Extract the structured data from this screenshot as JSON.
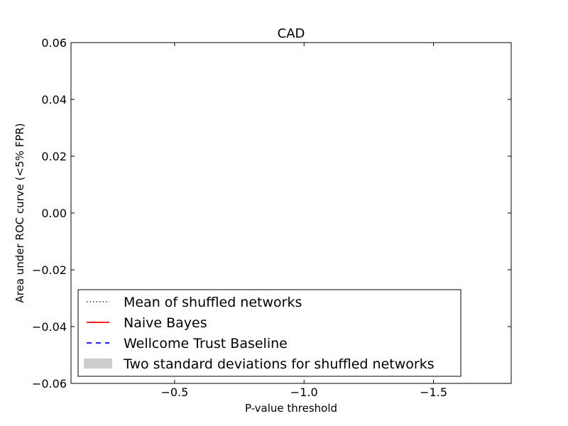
{
  "chart_data": {
    "type": "line",
    "title": "CAD",
    "xlabel": "P-value threshold",
    "ylabel": "Area under ROC curve (<5% FPR)",
    "xlim": [
      -0.1,
      -1.8
    ],
    "ylim": [
      -0.06,
      0.06
    ],
    "x_ticks": [
      {
        "value": -0.5,
        "label": "−0.5"
      },
      {
        "value": -1.0,
        "label": "−1.0"
      },
      {
        "value": -1.5,
        "label": "−1.5"
      }
    ],
    "y_ticks": [
      {
        "value": 0.06,
        "label": "0.06"
      },
      {
        "value": 0.04,
        "label": "0.04"
      },
      {
        "value": 0.02,
        "label": "0.02"
      },
      {
        "value": 0.0,
        "label": "0.00"
      },
      {
        "value": -0.02,
        "label": "−0.02"
      },
      {
        "value": -0.04,
        "label": "−0.04"
      },
      {
        "value": -0.06,
        "label": "−0.06"
      }
    ],
    "grid": false,
    "legend_position": "lower-left",
    "series": [
      {
        "name": "Mean of shuffled networks",
        "style": "dotted",
        "color": "#000000",
        "x": [],
        "y": []
      },
      {
        "name": "Naive Bayes",
        "style": "solid",
        "color": "#ff0000",
        "x": [],
        "y": []
      },
      {
        "name": "Wellcome Trust Baseline",
        "style": "dashed",
        "color": "#0000ff",
        "x": [],
        "y": []
      },
      {
        "name": "Two standard deviations for shuffled networks",
        "style": "band",
        "color": "#cccccc",
        "x": [],
        "y": []
      }
    ]
  }
}
